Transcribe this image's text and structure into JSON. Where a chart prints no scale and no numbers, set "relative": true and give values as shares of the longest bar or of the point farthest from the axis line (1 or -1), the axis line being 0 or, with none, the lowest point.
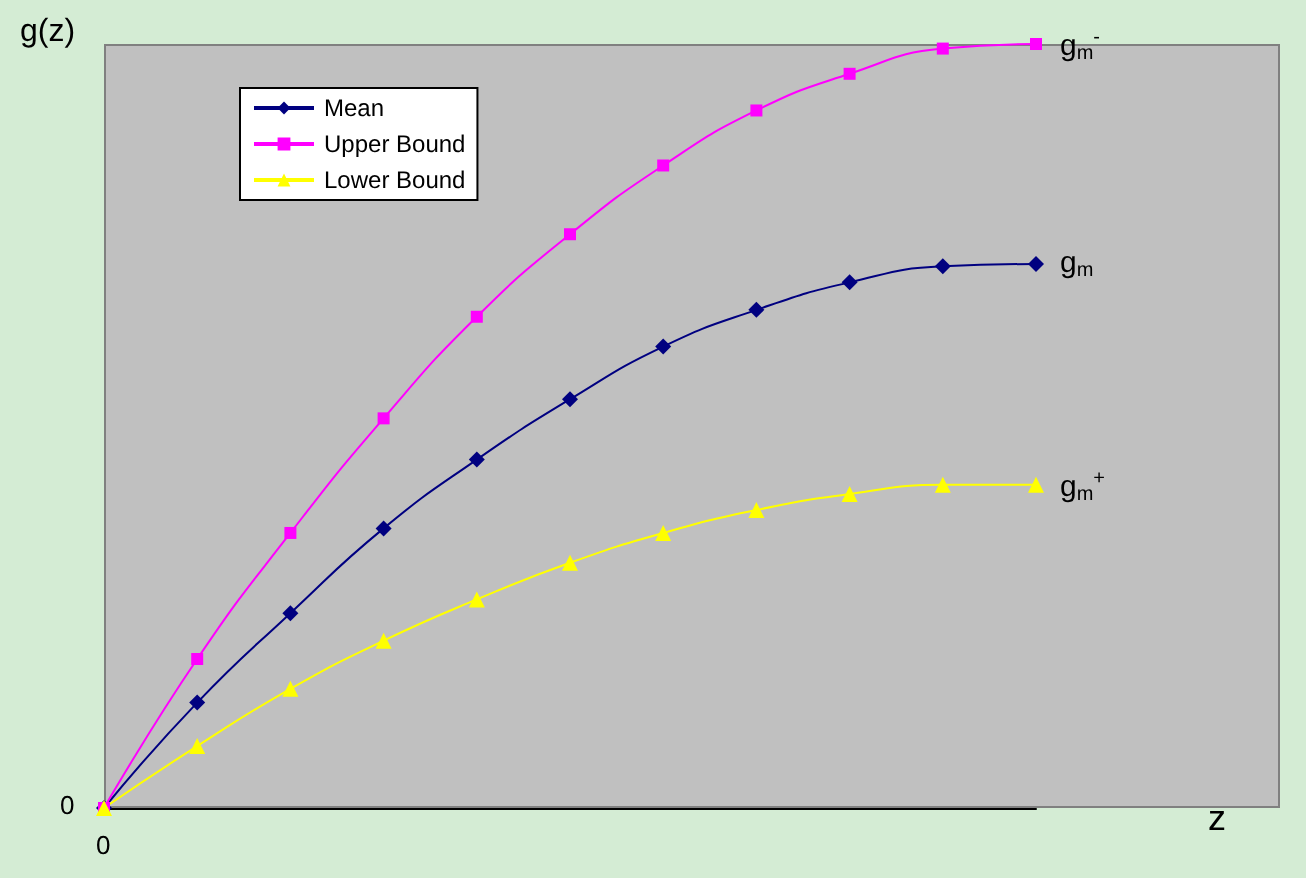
{
  "chart_data": {
    "type": "line",
    "relative": true,
    "xlabel": "z",
    "ylabel": "g(z)",
    "categories": [
      null,
      null,
      null,
      null,
      null,
      null,
      null,
      null,
      null,
      null,
      null
    ],
    "series": [
      {
        "name": "Mean",
        "color": "#000080",
        "marker": "diamond",
        "values": [
          0,
          0.138,
          0.255,
          0.366,
          0.456,
          0.535,
          0.604,
          0.652,
          0.688,
          0.709,
          0.712
        ]
      },
      {
        "name": "Upper Bound",
        "color": "#ff00ff",
        "marker": "square",
        "values": [
          0,
          0.195,
          0.36,
          0.51,
          0.643,
          0.751,
          0.841,
          0.913,
          0.961,
          0.994,
          1
        ]
      },
      {
        "name": "Lower Bound",
        "color": "#ffff00",
        "marker": "triangle",
        "values": [
          0,
          0.081,
          0.156,
          0.219,
          0.273,
          0.321,
          0.36,
          0.39,
          0.411,
          0.423,
          0.423
        ]
      }
    ],
    "annotations": [
      "0",
      "0",
      "g$_{m}$$^{-}$",
      "g$_{m}$",
      "g$_{m}$$^{+}$"
    ],
    "legend": "top left",
    "grid": false
  }
}
